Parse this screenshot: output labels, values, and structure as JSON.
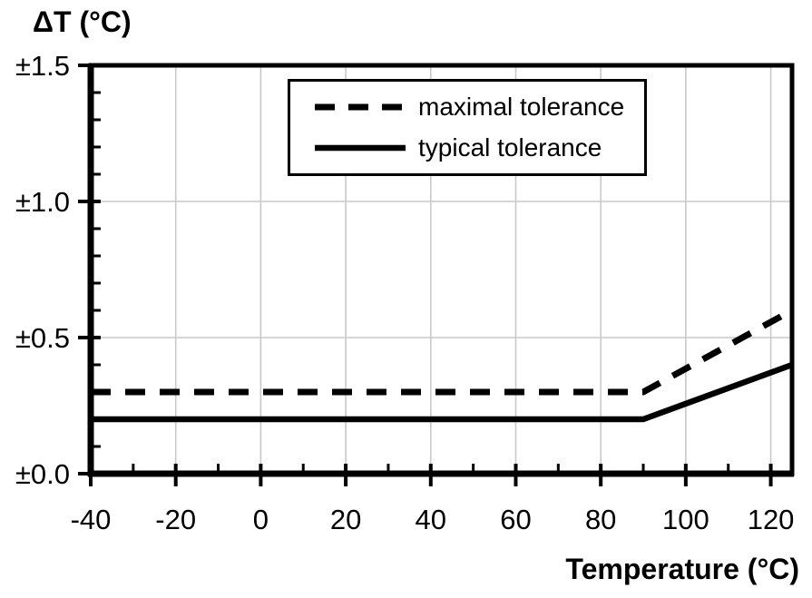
{
  "chart_data": {
    "type": "line",
    "ylabel": "ΔT (°C)",
    "xlabel": "Temperature (°C)",
    "xlim": [
      -40,
      125
    ],
    "ylim": [
      0,
      1.5
    ],
    "x_major_ticks": [
      -40,
      -20,
      0,
      20,
      40,
      60,
      80,
      100,
      120
    ],
    "x_minor_step": 10,
    "y_major_ticks": [
      0,
      0.5,
      1,
      1.5
    ],
    "y_tick_labels": [
      "±0.0",
      "±0.5",
      "±1.0",
      "±1.5"
    ],
    "y_minor_step": 0.1,
    "grid": true,
    "grid_color": "#c9c9c9",
    "line_color": "#000000",
    "background_color": "#ffffff",
    "legend": {
      "position": "top-inside",
      "entries": [
        {
          "label": "maximal tolerance",
          "style": "dashed"
        },
        {
          "label": "typical tolerance",
          "style": "solid"
        }
      ]
    },
    "series": [
      {
        "name": "maximal tolerance",
        "style": "dashed",
        "points": [
          [
            -40,
            0.3
          ],
          [
            90,
            0.3
          ],
          [
            125,
            0.6
          ]
        ]
      },
      {
        "name": "typical tolerance",
        "style": "solid",
        "points": [
          [
            -40,
            0.2
          ],
          [
            90,
            0.2
          ],
          [
            125,
            0.4
          ]
        ]
      }
    ]
  }
}
